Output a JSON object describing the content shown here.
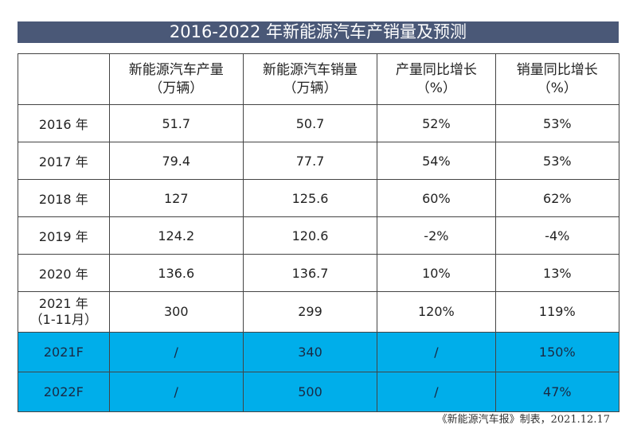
{
  "title": "2016-2022 年新能源汽车产销量及预测",
  "headers": [
    {
      "line1": "",
      "line2": ""
    },
    {
      "line1": "新能源汽车产量",
      "line2": "（万辆）"
    },
    {
      "line1": "新能源汽车销量",
      "line2": "（万辆）"
    },
    {
      "line1": "产量同比增长",
      "line2": "（%）"
    },
    {
      "line1": "销量同比增长",
      "line2": "（%）"
    }
  ],
  "rows": [
    {
      "year": "2016 年",
      "sub": "",
      "production": "51.7",
      "sales": "50.7",
      "prod_growth": "52%",
      "sales_growth": "53%"
    },
    {
      "year": "2017 年",
      "sub": "",
      "production": "79.4",
      "sales": "77.7",
      "prod_growth": "54%",
      "sales_growth": "53%"
    },
    {
      "year": "2018 年",
      "sub": "",
      "production": "127",
      "sales": "125.6",
      "prod_growth": "60%",
      "sales_growth": "62%"
    },
    {
      "year": "2019 年",
      "sub": "",
      "production": "124.2",
      "sales": "120.6",
      "prod_growth": "-2%",
      "sales_growth": "-4%"
    },
    {
      "year": "2020 年",
      "sub": "",
      "production": "136.6",
      "sales": "136.7",
      "prod_growth": "10%",
      "sales_growth": "13%"
    },
    {
      "year": "2021 年",
      "sub": "（1-11月）",
      "production": "300",
      "sales": "299",
      "prod_growth": "120%",
      "sales_growth": "119%"
    },
    {
      "year": "2021F",
      "sub": "",
      "production": "/",
      "sales": "340",
      "prod_growth": "/",
      "sales_growth": "150%"
    },
    {
      "year": "2022F",
      "sub": "",
      "production": "/",
      "sales": "500",
      "prod_growth": "/",
      "sales_growth": "47%"
    }
  ],
  "footer": "《新能源汽车报》制表，2021.12.17",
  "colors": {
    "title_bg": "#4a5877",
    "forecast_bg": "#00aeea"
  }
}
